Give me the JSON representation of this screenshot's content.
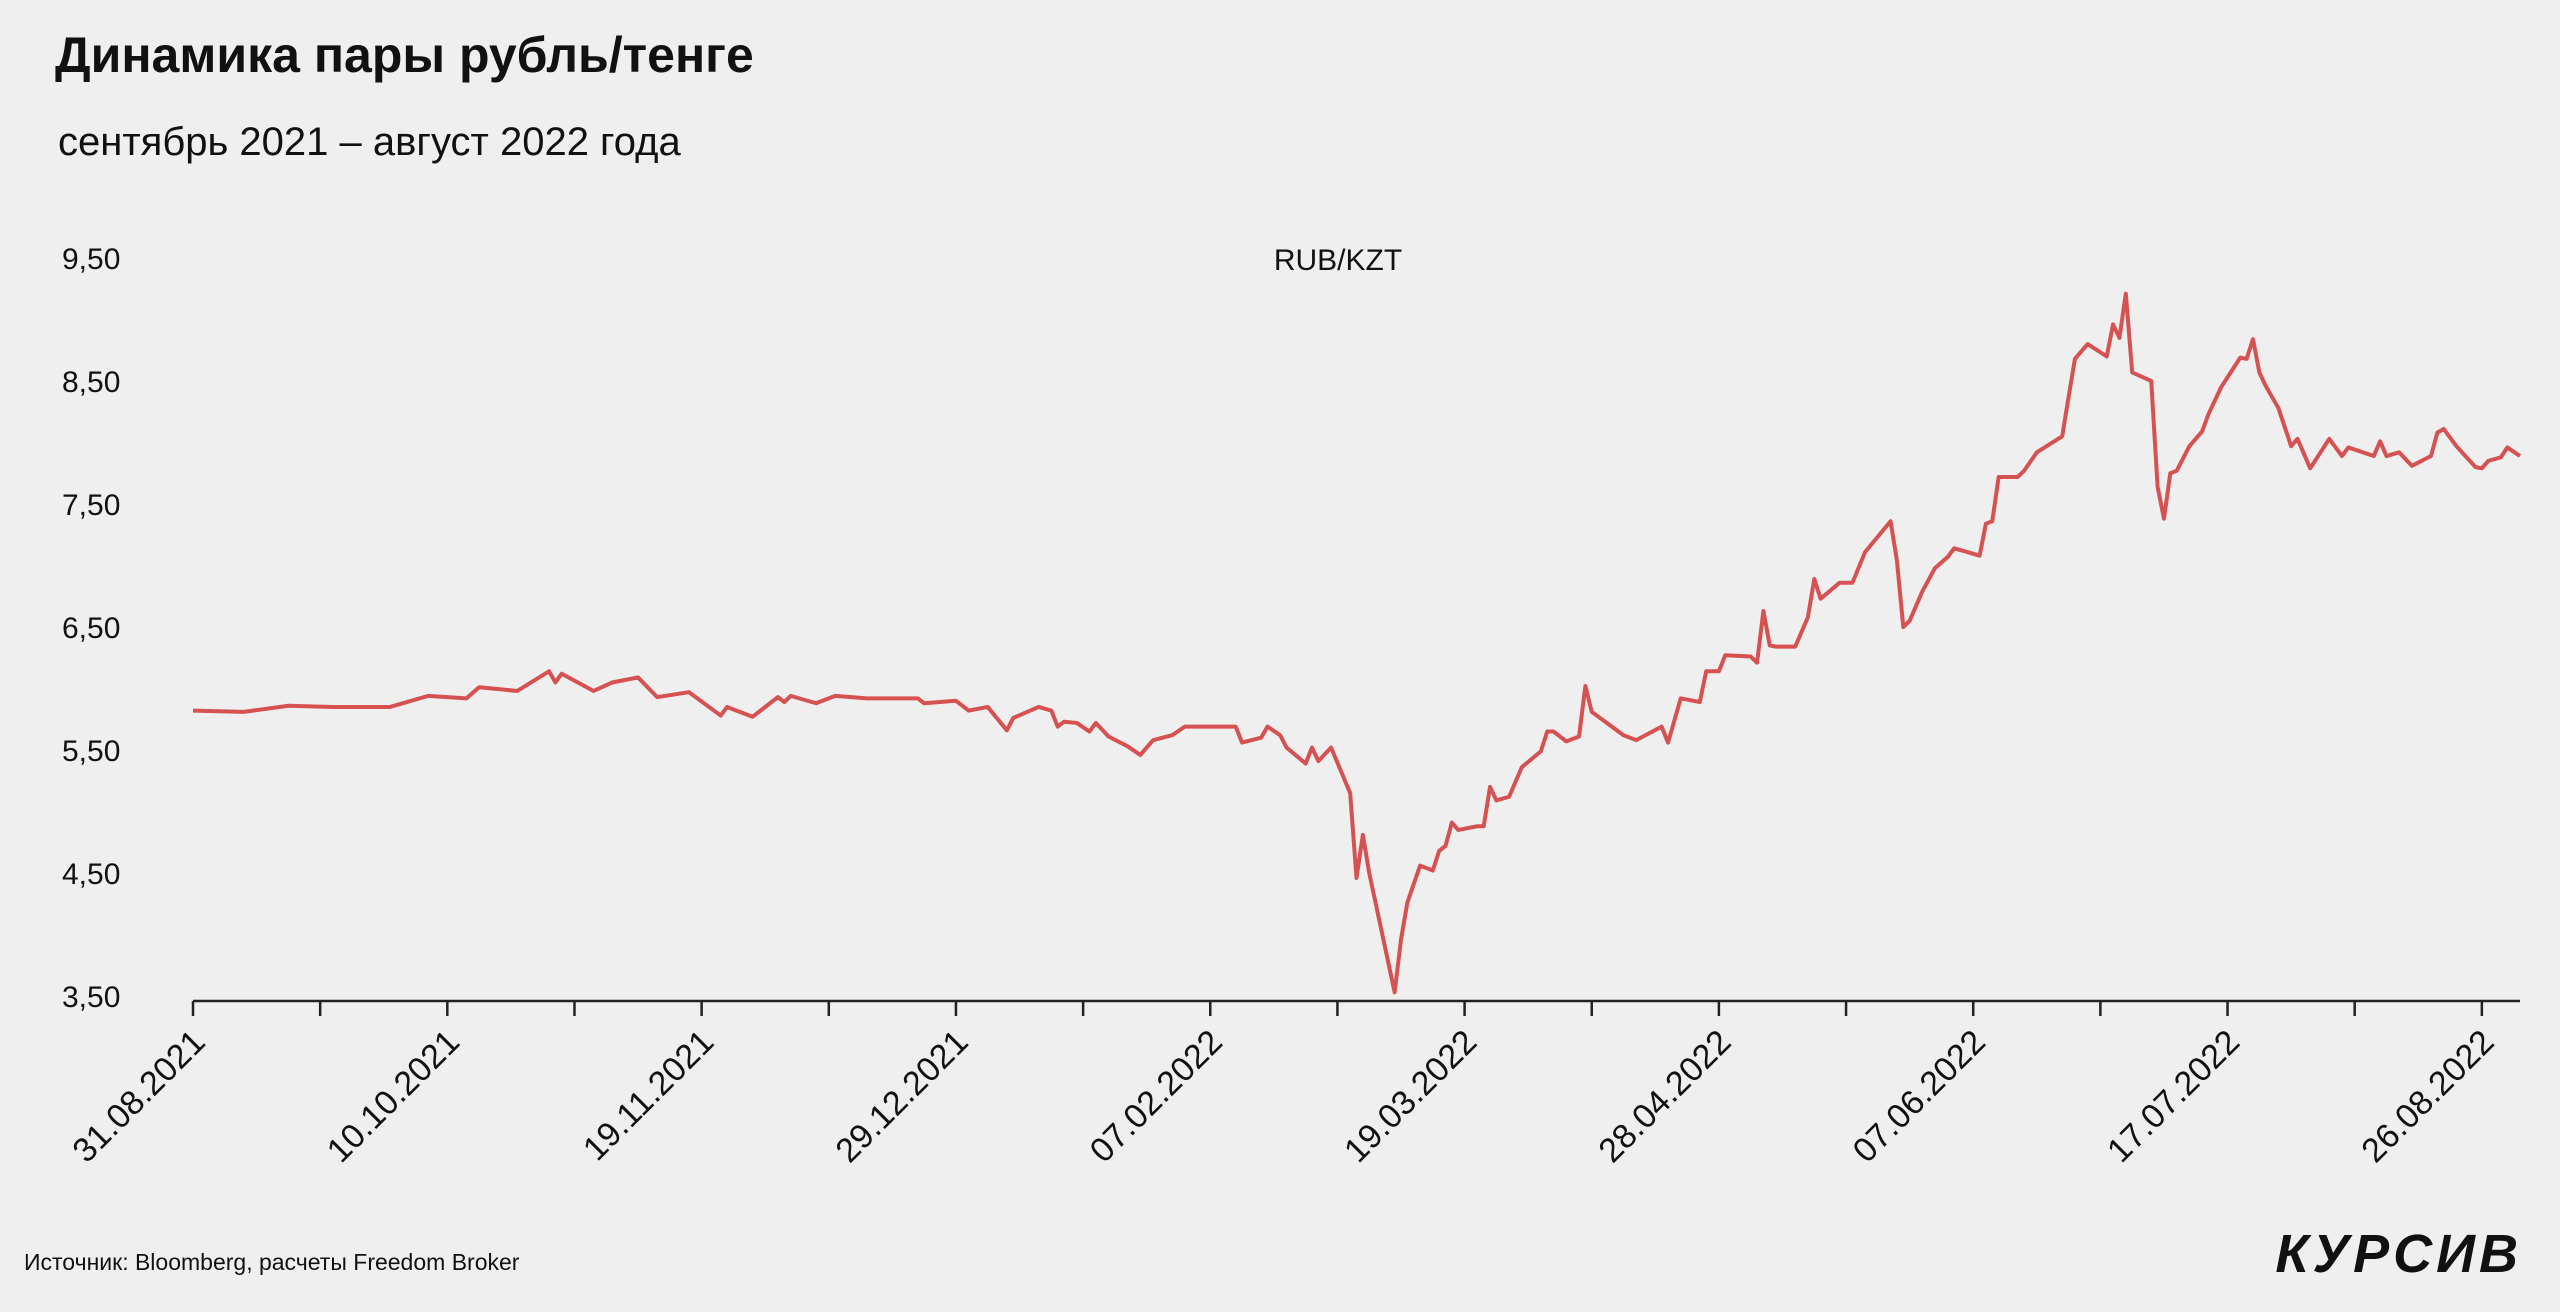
{
  "chart_data": {
    "type": "line",
    "title": "Динамика пары рубль/тенге",
    "subtitle": "сентябрь 2021 – август 2022 года",
    "source": "Источник: Bloomberg, расчеты Freedom Broker",
    "logo": "КУРСИВ",
    "xlim": [
      "31.08.2021",
      "01.09.2022"
    ],
    "xticks": [
      "31.08.2021",
      "10.10.2021",
      "19.11.2021",
      "29.12.2021",
      "07.02.2022",
      "19.03.2022",
      "28.04.2022",
      "07.06.2022",
      "17.07.2022",
      "26.08.2022"
    ],
    "ylim": [
      3.5,
      9.5
    ],
    "yticks": [
      {
        "value": 9.5,
        "label": "9,50"
      },
      {
        "value": 8.5,
        "label": "8,50"
      },
      {
        "value": 7.5,
        "label": "7,50"
      },
      {
        "value": 6.5,
        "label": "6,50"
      },
      {
        "value": 5.5,
        "label": "5,50"
      },
      {
        "value": 4.5,
        "label": "4,50"
      },
      {
        "value": 3.5,
        "label": "3,50"
      }
    ],
    "x": [
      "31.08.2021",
      "08.09.2021",
      "15.09.2021",
      "22.09.2021",
      "01.10.2021",
      "07.10.2021",
      "13.10.2021",
      "15.10.2021",
      "21.10.2021",
      "26.10.2021",
      "27.10.2021",
      "28.10.2021",
      "02.11.2021",
      "05.11.2021",
      "09.11.2021",
      "12.11.2021",
      "17.11.2021",
      "22.11.2021",
      "23.11.2021",
      "27.11.2021",
      "01.12.2021",
      "02.12.2021",
      "03.12.2021",
      "07.12.2021",
      "10.12.2021",
      "15.12.2021",
      "23.12.2021",
      "24.12.2021",
      "29.12.2021",
      "31.12.2021",
      "03.01.2022",
      "06.01.2022",
      "07.01.2022",
      "11.01.2022",
      "13.01.2022",
      "14.01.2022",
      "15.01.2022",
      "17.01.2022",
      "19.01.2022",
      "20.01.2022",
      "22.01.2022",
      "25.01.2022",
      "27.01.2022",
      "29.01.2022",
      "01.02.2022",
      "03.02.2022",
      "11.02.2022",
      "12.02.2022",
      "15.02.2022",
      "16.02.2022",
      "18.02.2022",
      "19.02.2022",
      "22.02.2022",
      "23.02.2022",
      "24.02.2022",
      "26.02.2022",
      "01.03.2022",
      "02.03.2022",
      "03.03.2022",
      "04.03.2022",
      "08.03.2022",
      "09.03.2022",
      "10.03.2022",
      "12.03.2022",
      "14.03.2022",
      "15.03.2022",
      "16.03.2022",
      "17.03.2022",
      "18.03.2022",
      "21.03.2022",
      "22.03.2022",
      "23.03.2022",
      "24.03.2022",
      "26.03.2022",
      "28.03.2022",
      "31.03.2022",
      "01.04.2022",
      "02.04.2022",
      "04.04.2022",
      "06.04.2022",
      "07.04.2022",
      "08.04.2022",
      "13.04.2022",
      "15.04.2022",
      "19.04.2022",
      "20.04.2022",
      "22.04.2022",
      "25.04.2022",
      "26.04.2022",
      "28.04.2022",
      "29.04.2022",
      "03.05.2022",
      "04.05.2022",
      "05.05.2022",
      "06.05.2022",
      "07.05.2022",
      "10.05.2022",
      "12.05.2022",
      "13.05.2022",
      "14.05.2022",
      "17.05.2022",
      "19.05.2022",
      "21.05.2022",
      "25.05.2022",
      "26.05.2022",
      "27.05.2022",
      "28.05.2022",
      "30.05.2022",
      "01.06.2022",
      "03.06.2022",
      "04.06.2022",
      "06.06.2022",
      "08.06.2022",
      "09.06.2022",
      "10.06.2022",
      "11.06.2022",
      "14.06.2022",
      "15.06.2022",
      "17.06.2022",
      "21.06.2022",
      "22.06.2022",
      "23.06.2022",
      "25.06.2022",
      "28.06.2022",
      "29.06.2022",
      "30.06.2022",
      "01.07.2022",
      "02.07.2022",
      "05.07.2022",
      "06.07.2022",
      "07.07.2022",
      "08.07.2022",
      "09.07.2022",
      "11.07.2022",
      "13.07.2022",
      "14.07.2022",
      "16.07.2022",
      "19.07.2022",
      "20.07.2022",
      "21.07.2022",
      "22.07.2022",
      "23.07.2022",
      "25.07.2022",
      "27.07.2022",
      "28.07.2022",
      "30.07.2022",
      "02.08.2022",
      "04.08.2022",
      "05.08.2022",
      "09.08.2022",
      "10.08.2022",
      "11.08.2022",
      "13.08.2022",
      "15.08.2022",
      "18.08.2022",
      "19.08.2022",
      "20.08.2022",
      "22.08.2022",
      "25.08.2022",
      "26.08.2022",
      "27.08.2022",
      "29.08.2022",
      "30.08.2022",
      "01.09.2022"
    ],
    "series": [
      {
        "name": "RUB/KZT",
        "color": "#d65252",
        "values": [
          5.82,
          5.81,
          5.86,
          5.85,
          5.85,
          5.94,
          5.92,
          6.01,
          5.98,
          6.14,
          6.05,
          6.12,
          5.98,
          6.05,
          6.09,
          5.93,
          5.97,
          5.78,
          5.85,
          5.77,
          5.93,
          5.89,
          5.94,
          5.88,
          5.94,
          5.92,
          5.92,
          5.88,
          5.9,
          5.82,
          5.85,
          5.66,
          5.76,
          5.85,
          5.82,
          5.69,
          5.73,
          5.72,
          5.65,
          5.72,
          5.61,
          5.53,
          5.46,
          5.58,
          5.62,
          5.69,
          5.69,
          5.56,
          5.6,
          5.69,
          5.62,
          5.52,
          5.39,
          5.52,
          5.41,
          5.52,
          5.15,
          4.46,
          4.81,
          4.5,
          3.53,
          3.96,
          4.26,
          4.56,
          4.52,
          4.68,
          4.72,
          4.91,
          4.85,
          4.88,
          4.88,
          5.2,
          5.09,
          5.12,
          5.36,
          5.49,
          5.65,
          5.65,
          5.57,
          5.61,
          6.02,
          5.81,
          5.62,
          5.58,
          5.69,
          5.56,
          5.92,
          5.89,
          6.14,
          6.14,
          6.27,
          6.26,
          6.21,
          6.63,
          6.35,
          6.34,
          6.34,
          6.58,
          6.89,
          6.73,
          6.86,
          6.86,
          7.11,
          7.36,
          7.04,
          6.5,
          6.55,
          6.79,
          6.98,
          7.07,
          7.14,
          7.11,
          7.08,
          7.34,
          7.36,
          7.72,
          7.72,
          7.77,
          7.92,
          8.05,
          8.37,
          8.68,
          8.8,
          8.7,
          8.96,
          8.85,
          9.21,
          8.57,
          8.5,
          7.64,
          7.38,
          7.75,
          7.77,
          7.97,
          8.09,
          8.23,
          8.45,
          8.69,
          8.68,
          8.84,
          8.57,
          8.46,
          8.28,
          7.97,
          8.03,
          7.79,
          8.03,
          7.89,
          7.96,
          7.89,
          8.01,
          7.89,
          7.92,
          7.81,
          7.89,
          8.08,
          8.11,
          7.97,
          7.8,
          7.79,
          7.85,
          7.88,
          7.96,
          7.89
        ]
      }
    ]
  }
}
